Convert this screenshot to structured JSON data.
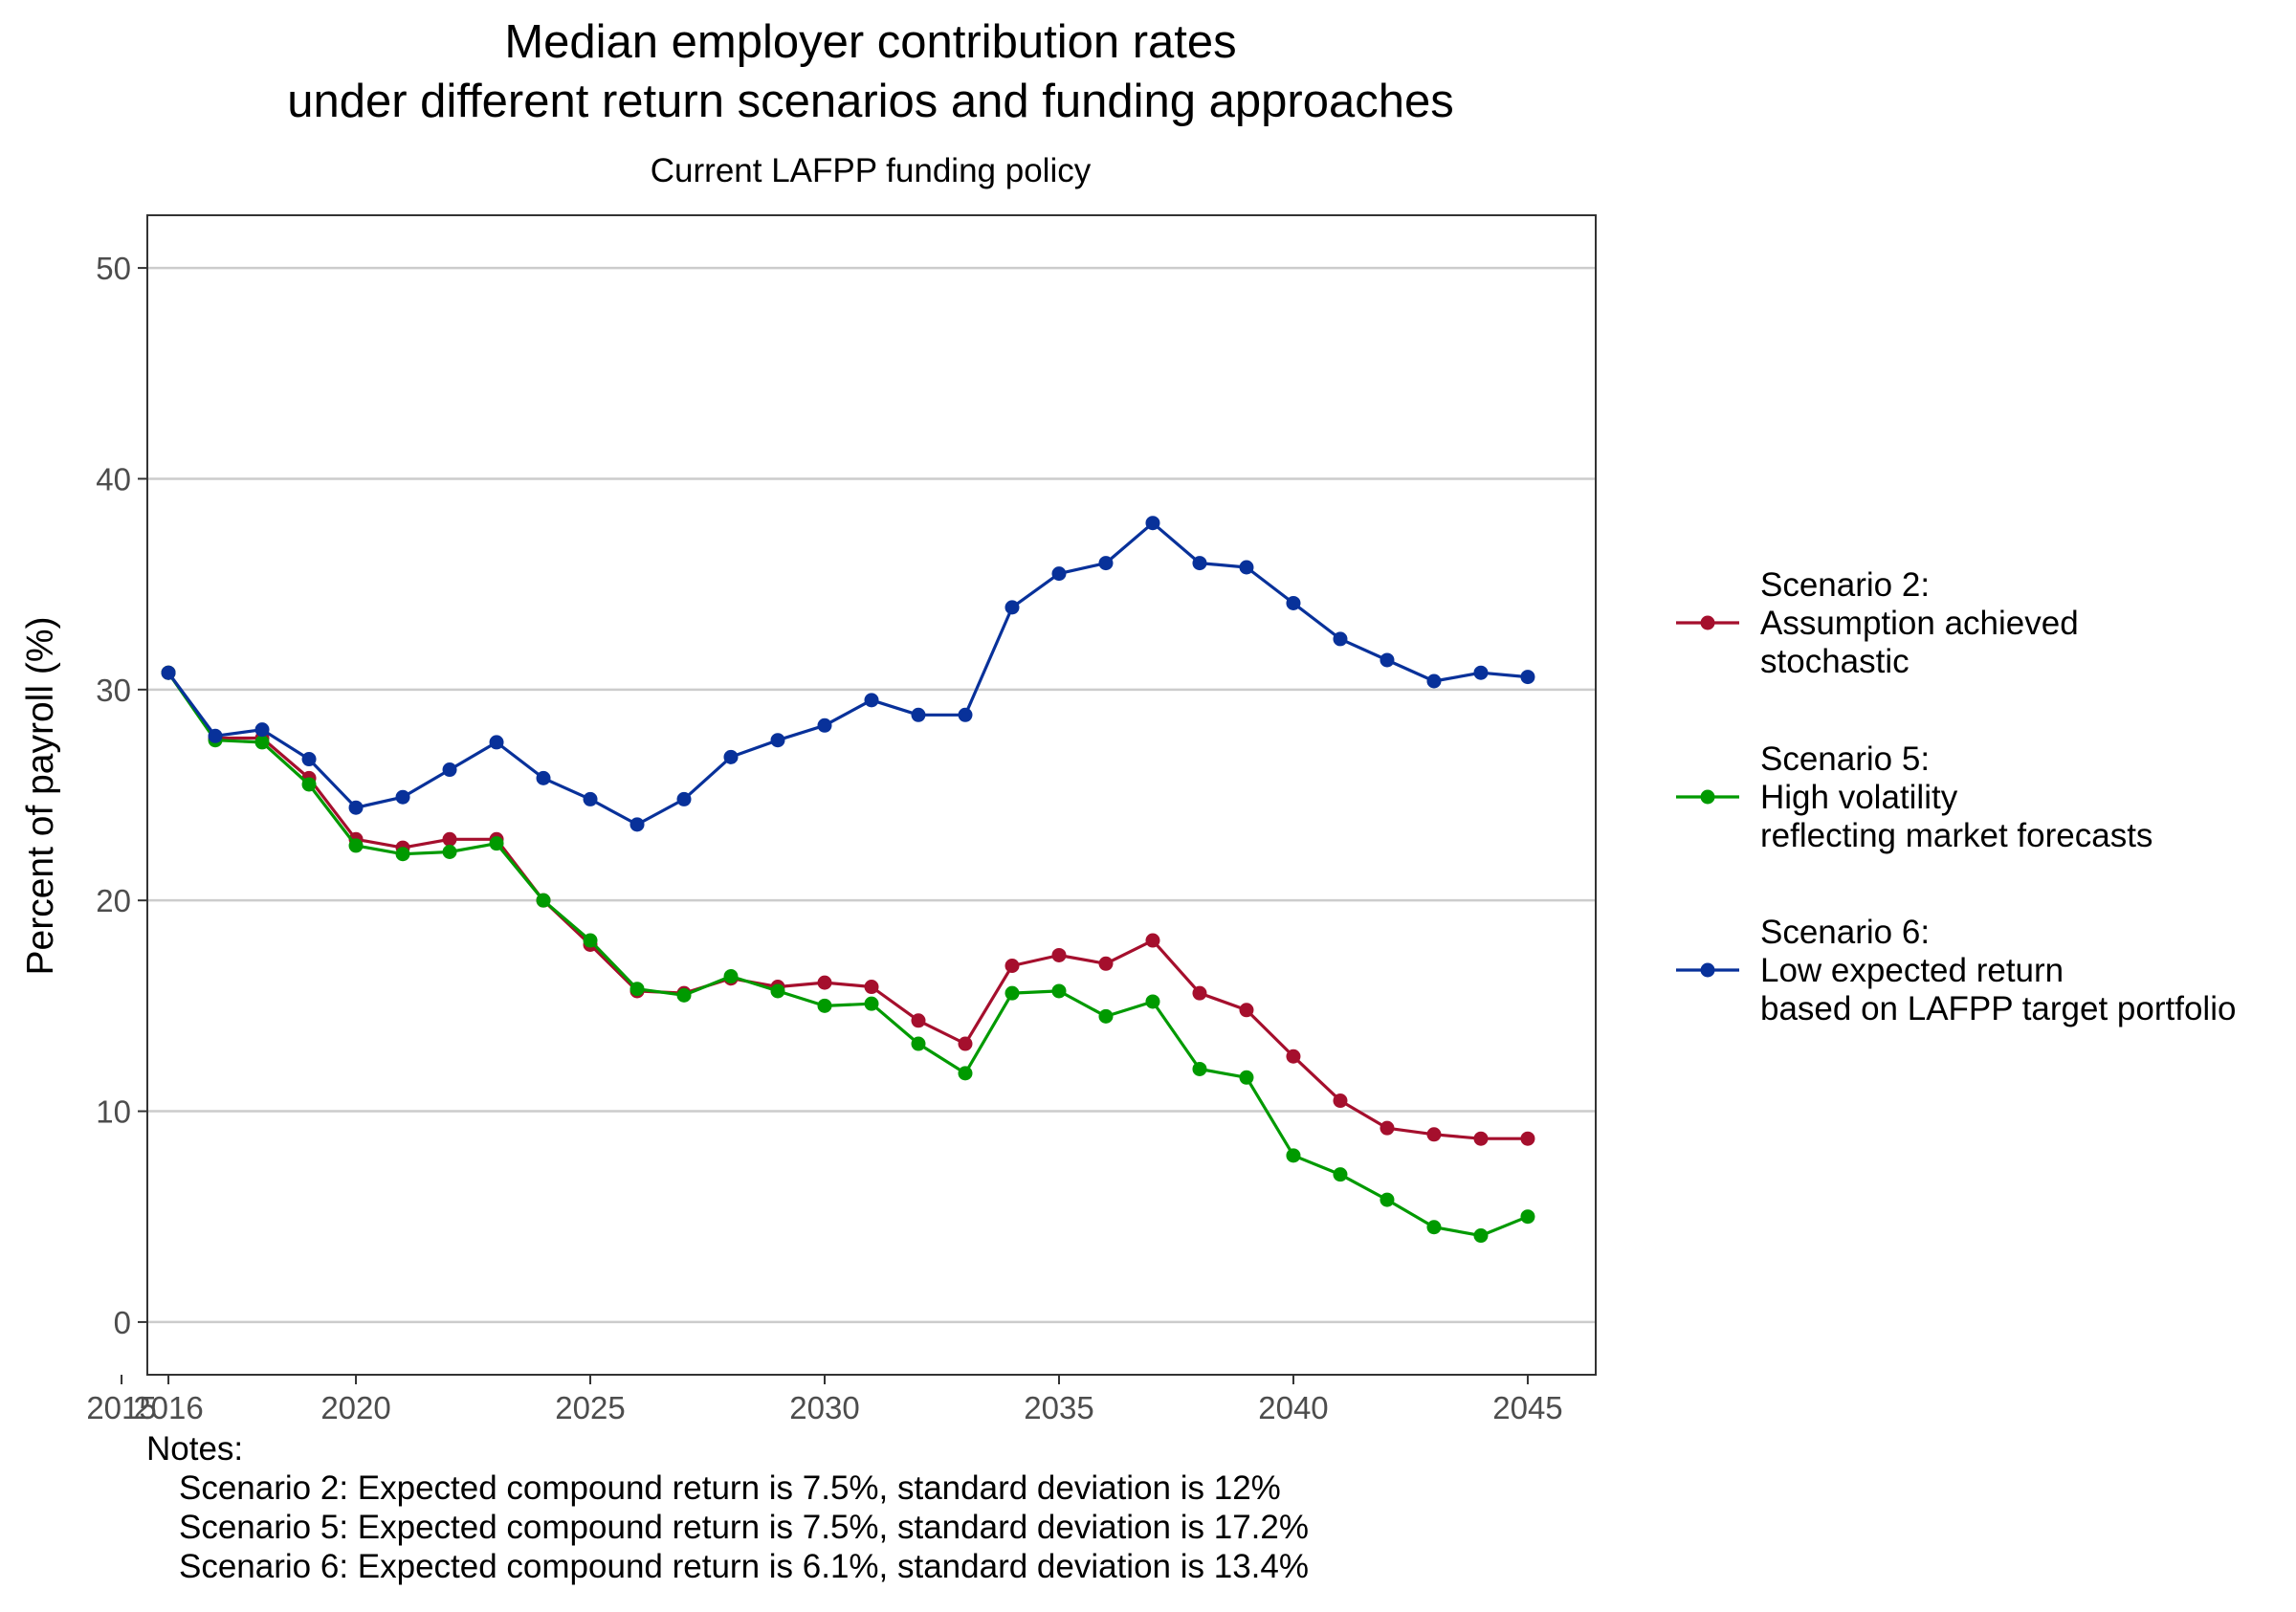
{
  "chart_data": {
    "type": "line",
    "title_lines": [
      "Median employer contribution rates",
      "under different return scenarios and funding approaches"
    ],
    "subtitle": "Current LAFPP funding policy",
    "xlabel": "",
    "ylabel": "Percent of payroll (%)",
    "xlim": [
      2015.55,
      2046.45
    ],
    "ylim": [
      -2.5,
      52.5
    ],
    "x_ticks": [
      2015,
      2016,
      2020,
      2025,
      2030,
      2035,
      2040,
      2045
    ],
    "y_ticks": [
      0,
      10,
      20,
      30,
      40,
      50
    ],
    "grid": {
      "major_y": true,
      "major_x": false
    },
    "legend_position": "right",
    "x": [
      2016,
      2017,
      2018,
      2019,
      2020,
      2021,
      2022,
      2023,
      2024,
      2025,
      2026,
      2027,
      2028,
      2029,
      2030,
      2031,
      2032,
      2033,
      2034,
      2035,
      2036,
      2037,
      2038,
      2039,
      2040,
      2041,
      2042,
      2043,
      2044,
      2045
    ],
    "series": [
      {
        "name": "Scenario 2:\nAssumption achieved\nstochastic",
        "color": "#a50f2d",
        "values": [
          30.8,
          27.7,
          27.7,
          25.8,
          22.9,
          22.5,
          22.9,
          22.9,
          20.0,
          17.9,
          15.7,
          15.6,
          16.3,
          15.9,
          16.1,
          15.9,
          14.3,
          13.2,
          16.9,
          17.4,
          17.0,
          18.1,
          15.6,
          14.8,
          12.6,
          10.5,
          9.2,
          8.9,
          8.7,
          8.7
        ]
      },
      {
        "name": "Scenario 5:\nHigh volatility\nreflecting market forecasts",
        "color": "#009a00",
        "values": [
          30.8,
          27.6,
          27.5,
          25.5,
          22.6,
          22.2,
          22.3,
          22.7,
          20.0,
          18.1,
          15.8,
          15.5,
          16.4,
          15.7,
          15.0,
          15.1,
          13.2,
          11.8,
          15.6,
          15.7,
          14.5,
          15.2,
          12.0,
          11.6,
          7.9,
          7.0,
          5.8,
          4.5,
          4.1,
          5.0
        ]
      },
      {
        "name": "Scenario 6:\nLow expected return\nbased on LAFPP target portfolio",
        "color": "#08319a",
        "values": [
          30.8,
          27.8,
          28.1,
          26.7,
          24.4,
          24.9,
          26.2,
          27.5,
          25.8,
          24.8,
          23.6,
          24.8,
          26.8,
          27.6,
          28.3,
          29.5,
          28.8,
          28.8,
          33.9,
          35.5,
          36.0,
          37.9,
          36.0,
          35.8,
          34.1,
          32.4,
          31.4,
          30.4,
          30.8,
          30.6
        ]
      }
    ],
    "notes": {
      "heading": "Notes:",
      "lines": [
        "Scenario 2: Expected compound return is 7.5%, standard deviation is 12%",
        "Scenario 5: Expected compound return is 7.5%, standard deviation is 17.2%",
        "Scenario 6: Expected compound return is 6.1%, standard deviation is 13.4%"
      ]
    }
  }
}
